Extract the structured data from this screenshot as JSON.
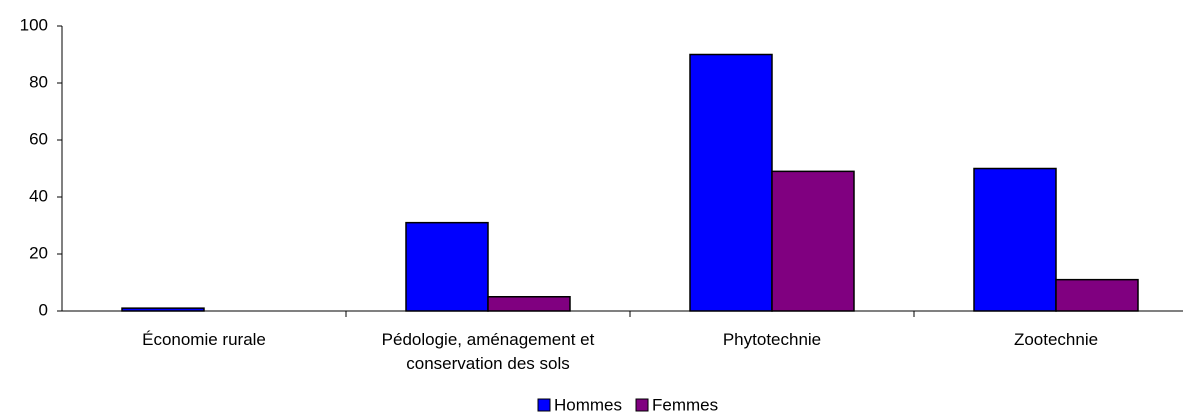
{
  "chart_data": {
    "type": "bar",
    "categories": [
      "Économie rurale",
      "Pédologie, aménagement et conservation des sols",
      "Phytotechnie",
      "Zootechnie"
    ],
    "series": [
      {
        "name": "Hommes",
        "color": "#0000ff",
        "values": [
          1,
          31,
          90,
          50
        ]
      },
      {
        "name": "Femmes",
        "color": "#800080",
        "values": [
          0,
          5,
          49,
          11
        ]
      }
    ],
    "ylim": [
      0,
      100
    ],
    "yticks": [
      0,
      20,
      40,
      60,
      80,
      100
    ],
    "grid": false,
    "legend": "bottom"
  }
}
